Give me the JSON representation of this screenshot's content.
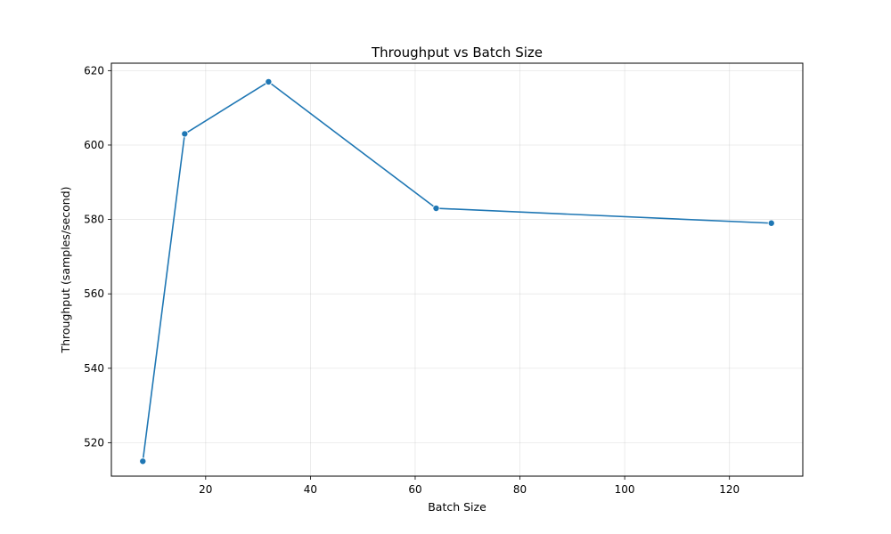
{
  "chart_data": {
    "type": "line",
    "title": "Throughput vs Batch Size",
    "xlabel": "Batch Size",
    "ylabel": "Throughput (samples/second)",
    "xlim": [
      2,
      134
    ],
    "ylim": [
      511,
      622
    ],
    "xticks": [
      20,
      40,
      60,
      80,
      100,
      120
    ],
    "yticks": [
      520,
      540,
      560,
      580,
      600,
      620
    ],
    "grid": true,
    "series": [
      {
        "x": [
          8,
          16,
          32,
          64,
          128
        ],
        "y": [
          515,
          603,
          617,
          583,
          579
        ],
        "color": "#1f77b4",
        "marker": "circle"
      }
    ]
  }
}
